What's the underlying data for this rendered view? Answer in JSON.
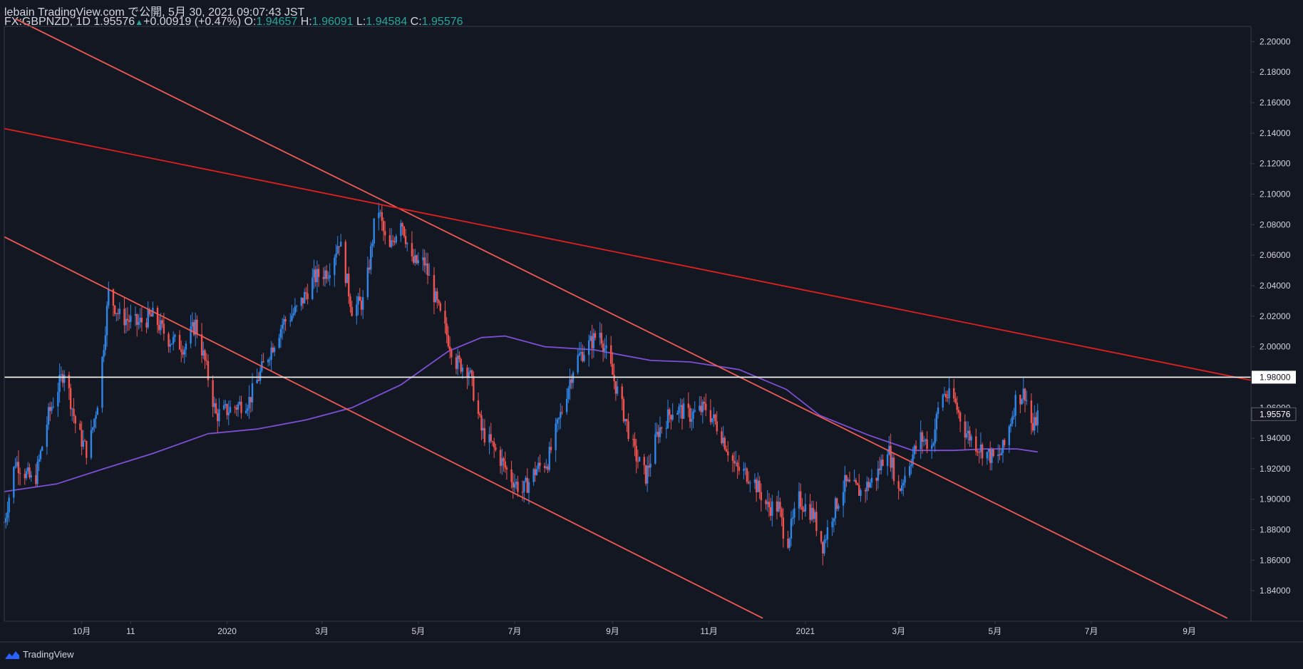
{
  "header": {
    "line1": "lebain TradingView.com で公開, 5月 30, 2021 09:07:43 JST",
    "symbol": "FX:GBPNZD, 1D",
    "last": "1.95576",
    "change": "+0.00919 (+0.47%)",
    "o_label": "O:",
    "o": "1.94657",
    "h_label": "H:",
    "h": "1.96091",
    "l_label": "L:",
    "l": "1.94584",
    "c_label": "C:",
    "c": "1.95576"
  },
  "brand": {
    "name": "TradingView",
    "icon": "tradingview-logo-icon"
  },
  "colors": {
    "background": "#131722",
    "up_candle": "#2f86e8",
    "down_candle": "#ef5350",
    "trendline": "#f05a55",
    "resistance_line": "#e0201f",
    "horizontal_level": "#ffffff",
    "moving_average": "#7e4fd6",
    "axis_text": "#d1d4dc",
    "grid_border": "#363a45"
  },
  "chart_data": {
    "type": "candlestick",
    "symbol": "FX:GBPNZD",
    "timeframe": "1D",
    "y_axis": {
      "range": [
        1.82,
        2.21
      ],
      "ticks": [
        "2.20000",
        "2.18000",
        "2.16000",
        "2.14000",
        "2.12000",
        "2.10000",
        "2.08000",
        "2.06000",
        "2.04000",
        "2.02000",
        "2.00000",
        "1.98000",
        "1.96000",
        "1.94000",
        "1.92000",
        "1.90000",
        "1.88000",
        "1.86000",
        "1.84000"
      ]
    },
    "x_axis": {
      "range": [
        "2019-08-13",
        "2021-10-10"
      ],
      "ticks": [
        {
          "label": "10月",
          "date": "2019-10-01"
        },
        {
          "label": "11",
          "date": "2019-11-01"
        },
        {
          "label": "2020",
          "date": "2020-01-01"
        },
        {
          "label": "3月",
          "date": "2020-03-01"
        },
        {
          "label": "5月",
          "date": "2020-05-01"
        },
        {
          "label": "7月",
          "date": "2020-07-01"
        },
        {
          "label": "9月",
          "date": "2020-09-01"
        },
        {
          "label": "11月",
          "date": "2020-11-01"
        },
        {
          "label": "2021",
          "date": "2021-01-01"
        },
        {
          "label": "3月",
          "date": "2021-03-01"
        },
        {
          "label": "5月",
          "date": "2021-05-01"
        },
        {
          "label": "7月",
          "date": "2021-07-01"
        },
        {
          "label": "9月",
          "date": "2021-09-01"
        }
      ]
    },
    "price_path": [
      [
        "2019-08-13",
        1.885
      ],
      [
        "2019-08-20",
        1.925
      ],
      [
        "2019-09-01",
        1.91
      ],
      [
        "2019-09-10",
        1.955
      ],
      [
        "2019-09-20",
        1.985
      ],
      [
        "2019-09-28",
        1.945
      ],
      [
        "2019-10-05",
        1.93
      ],
      [
        "2019-10-12",
        1.97
      ],
      [
        "2019-10-18",
        2.035
      ],
      [
        "2019-10-25",
        2.02
      ],
      [
        "2019-11-05",
        2.015
      ],
      [
        "2019-11-15",
        2.02
      ],
      [
        "2019-11-25",
        2.005
      ],
      [
        "2019-12-05",
        2.0
      ],
      [
        "2019-12-12",
        2.015
      ],
      [
        "2019-12-18",
        1.99
      ],
      [
        "2019-12-25",
        1.955
      ],
      [
        "2020-01-05",
        1.96
      ],
      [
        "2020-01-15",
        1.965
      ],
      [
        "2020-01-25",
        1.99
      ],
      [
        "2020-02-05",
        2.015
      ],
      [
        "2020-02-15",
        2.025
      ],
      [
        "2020-02-25",
        2.045
      ],
      [
        "2020-03-05",
        2.05
      ],
      [
        "2020-03-12",
        2.07
      ],
      [
        "2020-03-20",
        2.025
      ],
      [
        "2020-03-28",
        2.03
      ],
      [
        "2020-04-05",
        2.095
      ],
      [
        "2020-04-12",
        2.06
      ],
      [
        "2020-04-20",
        2.085
      ],
      [
        "2020-04-27",
        2.055
      ],
      [
        "2020-05-05",
        2.055
      ],
      [
        "2020-05-15",
        2.02
      ],
      [
        "2020-05-25",
        1.99
      ],
      [
        "2020-06-02",
        1.985
      ],
      [
        "2020-06-10",
        1.945
      ],
      [
        "2020-06-20",
        1.93
      ],
      [
        "2020-06-28",
        1.915
      ],
      [
        "2020-07-06",
        1.905
      ],
      [
        "2020-07-15",
        1.92
      ],
      [
        "2020-07-22",
        1.925
      ],
      [
        "2020-07-30",
        1.955
      ],
      [
        "2020-08-08",
        1.99
      ],
      [
        "2020-08-16",
        2.0
      ],
      [
        "2020-08-24",
        2.01
      ],
      [
        "2020-08-31",
        1.985
      ],
      [
        "2020-09-07",
        1.96
      ],
      [
        "2020-09-15",
        1.93
      ],
      [
        "2020-09-22",
        1.915
      ],
      [
        "2020-09-30",
        1.945
      ],
      [
        "2020-10-10",
        1.96
      ],
      [
        "2020-10-20",
        1.955
      ],
      [
        "2020-10-30",
        1.96
      ],
      [
        "2020-11-08",
        1.945
      ],
      [
        "2020-11-18",
        1.92
      ],
      [
        "2020-11-28",
        1.915
      ],
      [
        "2020-12-08",
        1.895
      ],
      [
        "2020-12-15",
        1.895
      ],
      [
        "2020-12-20",
        1.87
      ],
      [
        "2020-12-28",
        1.9
      ],
      [
        "2021-01-06",
        1.89
      ],
      [
        "2021-01-12",
        1.87
      ],
      [
        "2021-01-18",
        1.89
      ],
      [
        "2021-01-26",
        1.91
      ],
      [
        "2021-02-05",
        1.905
      ],
      [
        "2021-02-15",
        1.915
      ],
      [
        "2021-02-22",
        1.935
      ],
      [
        "2021-03-01",
        1.905
      ],
      [
        "2021-03-08",
        1.925
      ],
      [
        "2021-03-15",
        1.94
      ],
      [
        "2021-03-22",
        1.935
      ],
      [
        "2021-03-28",
        1.97
      ],
      [
        "2021-04-05",
        1.965
      ],
      [
        "2021-04-12",
        1.945
      ],
      [
        "2021-04-20",
        1.935
      ],
      [
        "2021-04-26",
        1.93
      ],
      [
        "2021-05-02",
        1.925
      ],
      [
        "2021-05-07",
        1.935
      ],
      [
        "2021-05-14",
        1.965
      ],
      [
        "2021-05-20",
        1.97
      ],
      [
        "2021-05-25",
        1.945
      ],
      [
        "2021-05-28",
        1.95576
      ]
    ],
    "moving_average": {
      "color": "#7e4fd6",
      "points": [
        [
          "2019-08-13",
          1.905
        ],
        [
          "2019-09-15",
          1.91
        ],
        [
          "2019-10-15",
          1.92
        ],
        [
          "2019-11-15",
          1.93
        ],
        [
          "2019-12-20",
          1.943
        ],
        [
          "2020-01-20",
          1.946
        ],
        [
          "2020-02-20",
          1.952
        ],
        [
          "2020-03-20",
          1.96
        ],
        [
          "2020-04-20",
          1.975
        ],
        [
          "2020-05-20",
          1.997
        ],
        [
          "2020-06-10",
          2.006
        ],
        [
          "2020-06-25",
          2.007
        ],
        [
          "2020-07-20",
          2.0
        ],
        [
          "2020-08-20",
          1.998
        ],
        [
          "2020-09-25",
          1.991
        ],
        [
          "2020-10-20",
          1.99
        ],
        [
          "2020-11-20",
          1.985
        ],
        [
          "2020-12-20",
          1.972
        ],
        [
          "2021-01-10",
          1.955
        ],
        [
          "2021-02-10",
          1.942
        ],
        [
          "2021-03-10",
          1.932
        ],
        [
          "2021-04-05",
          1.932
        ],
        [
          "2021-04-25",
          1.933
        ],
        [
          "2021-05-15",
          1.933
        ],
        [
          "2021-05-28",
          1.931
        ]
      ]
    },
    "drawings": [
      {
        "kind": "trendline",
        "color": "#f05a55",
        "from": [
          "2019-08-13",
          2.072
        ],
        "to": [
          "2020-12-05",
          1.822
        ]
      },
      {
        "kind": "trendline",
        "color": "#f05a55",
        "from": [
          "2019-08-20",
          2.215
        ],
        "to": [
          "2021-09-25",
          1.822
        ]
      },
      {
        "kind": "trendline",
        "color": "#e0201f",
        "from": [
          "2019-08-13",
          2.143
        ],
        "to": [
          "2021-10-10",
          1.978
        ]
      },
      {
        "kind": "horizontal",
        "color": "#ffffff",
        "value": 1.98
      }
    ],
    "price_labels": [
      {
        "value": 1.98,
        "text": "1.98000",
        "style": "level"
      },
      {
        "value": 1.95576,
        "text": "1.95576",
        "style": "last"
      }
    ]
  }
}
